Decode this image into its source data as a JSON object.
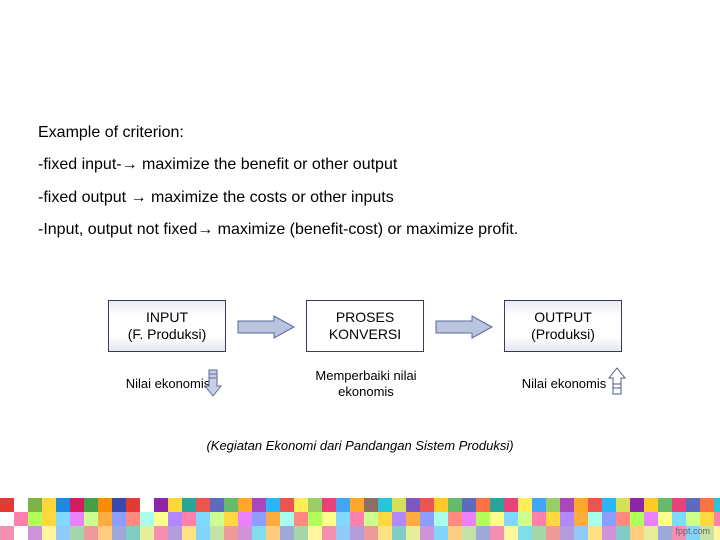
{
  "text": {
    "heading": "Example of criterion:",
    "line1": "-fixed input-→ maximize the benefit or other output",
    "line2": "-fixed output → maximize the costs or other inputs",
    "line3": "-Input, output  not fixed→ maximize (benefit-cost) or maximize profit."
  },
  "diagram": {
    "box1_line1": "INPUT",
    "box1_line2": "(F. Produksi)",
    "box2_line1": "PROSES",
    "box2_line2": "KONVERSI",
    "box3_line1": "OUTPUT",
    "box3_line2": "(Produksi)",
    "sub1": "Nilai ekonomis",
    "sub2_line1": "Memperbaiki nilai",
    "sub2_line2": "ekonomis",
    "sub3": "Nilai ekonomis",
    "caption": "(Kegiatan Ekonomi dari Pandangan Sistem Produksi)",
    "arrow_fill": "#b8c4e0",
    "arrow_stroke": "#5a6a9a",
    "box_border": "#3a3a5a",
    "down_fill": "#c8d0e8",
    "up_stroke": "#4a5a8a"
  },
  "footer": {
    "fppt": "fppt.com",
    "rows": [
      [
        "#e53935",
        "#ffffff",
        "#7cb342",
        "#fdd835",
        "#1e88e5",
        "#d81b60",
        "#43a047",
        "#fb8c00",
        "#3949ab",
        "#e53935",
        "#ffffff",
        "#8e24aa",
        "#fdd835",
        "#26a69a",
        "#ef5350",
        "#5c6bc0",
        "#66bb6a",
        "#ffa726",
        "#ab47bc",
        "#29b6f6",
        "#ef5350",
        "#ffee58",
        "#9ccc65",
        "#ec407a",
        "#42a5f5",
        "#ffa726",
        "#8d6e63",
        "#26c6da",
        "#d4e157",
        "#7e57c2",
        "#ef5350",
        "#ffca28",
        "#66bb6a",
        "#5c6bc0",
        "#ff7043",
        "#26a69a",
        "#ec407a",
        "#ffee58",
        "#42a5f5",
        "#9ccc65",
        "#ab47bc",
        "#ffa726",
        "#ef5350",
        "#29b6f6",
        "#d4e157",
        "#8e24aa",
        "#ffca28",
        "#66bb6a",
        "#ec407a",
        "#5c6bc0",
        "#ff7043",
        "#26c6da"
      ],
      [
        "#ffffff",
        "#ff80ab",
        "#b2ff59",
        "#ffd740",
        "#80d8ff",
        "#ea80fc",
        "#ccff90",
        "#ffab40",
        "#8c9eff",
        "#ff8a80",
        "#a7ffeb",
        "#ffff8d",
        "#b388ff",
        "#ff80ab",
        "#80d8ff",
        "#ccff90",
        "#ffd740",
        "#ea80fc",
        "#8c9eff",
        "#ffab40",
        "#a7ffeb",
        "#ff8a80",
        "#b2ff59",
        "#ffff8d",
        "#80d8ff",
        "#ff80ab",
        "#ccff90",
        "#ffd740",
        "#b388ff",
        "#ffab40",
        "#8c9eff",
        "#a7ffeb",
        "#ff8a80",
        "#ea80fc",
        "#b2ff59",
        "#ffff8d",
        "#80d8ff",
        "#ccff90",
        "#ff80ab",
        "#ffd740",
        "#b388ff",
        "#ffab40",
        "#a7ffeb",
        "#8c9eff",
        "#ff8a80",
        "#b2ff59",
        "#ea80fc",
        "#ffff8d",
        "#80d8ff",
        "#ccff90",
        "#ffd740",
        "#ff80ab"
      ],
      [
        "#f48fb1",
        "#ffffff",
        "#ce93d8",
        "#fff59d",
        "#90caf9",
        "#a5d6a7",
        "#ef9a9a",
        "#ffcc80",
        "#9fa8da",
        "#80cbc4",
        "#e6ee9c",
        "#f48fb1",
        "#b39ddb",
        "#ffe082",
        "#81d4fa",
        "#c5e1a5",
        "#ef9a9a",
        "#ce93d8",
        "#80deea",
        "#ffcc80",
        "#9fa8da",
        "#a5d6a7",
        "#fff59d",
        "#f48fb1",
        "#90caf9",
        "#b39ddb",
        "#ef9a9a",
        "#ffe082",
        "#80cbc4",
        "#e6ee9c",
        "#ce93d8",
        "#81d4fa",
        "#ffcc80",
        "#c5e1a5",
        "#9fa8da",
        "#f48fb1",
        "#fff59d",
        "#80deea",
        "#a5d6a7",
        "#ef9a9a",
        "#b39ddb",
        "#90caf9",
        "#ffe082",
        "#ce93d8",
        "#80cbc4",
        "#ffcc80",
        "#e6ee9c",
        "#9fa8da",
        "#f48fb1",
        "#81d4fa",
        "#c5e1a5",
        "#fff59d"
      ]
    ]
  }
}
